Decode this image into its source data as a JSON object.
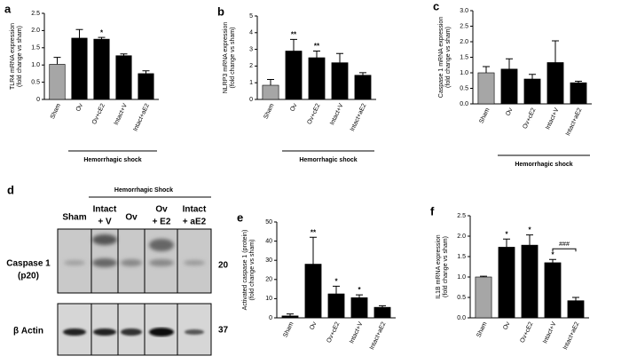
{
  "chart_data": [
    {
      "type": "bar",
      "panel": "a",
      "ylabel": [
        "TLR4 mRNA expression",
        "(fold change vs sham)"
      ],
      "categories": [
        "Sham",
        "Ov",
        "Ov+cE2",
        "Intact+V",
        "Intact+aE2"
      ],
      "values": [
        1.02,
        1.78,
        1.75,
        1.27,
        0.75
      ],
      "errors": [
        0.2,
        0.25,
        0.05,
        0.05,
        0.08
      ],
      "colors": [
        "#a6a6a6",
        "#000000",
        "#000000",
        "#000000",
        "#000000"
      ],
      "ylim": [
        0,
        2.5
      ],
      "yticks": [
        0,
        0.5,
        {
          "value": 1,
          "label": "1.0"
        },
        1.5,
        {
          "value": 2,
          "label": "2.0"
        },
        2.5
      ],
      "group_label": "Hemorrhagic shock",
      "annotations": [
        {
          "category": "Ov+cE2",
          "text": "*"
        }
      ]
    },
    {
      "type": "bar",
      "panel": "b",
      "ylabel": [
        "NLRP3 mRNA expression",
        "(fold change vs sham)"
      ],
      "categories": [
        "Sham",
        "Ov",
        "Ov+cE2",
        "Intact+V",
        "Intact+aE2"
      ],
      "values": [
        0.85,
        2.9,
        2.5,
        2.2,
        1.45
      ],
      "errors": [
        0.35,
        0.7,
        0.4,
        0.55,
        0.15
      ],
      "colors": [
        "#a6a6a6",
        "#000000",
        "#000000",
        "#000000",
        "#000000"
      ],
      "ylim": [
        0,
        5
      ],
      "yticks": [
        0,
        1,
        2,
        3,
        4,
        5
      ],
      "group_label": "Hemorrhagic shock",
      "annotations": [
        {
          "category": "Ov",
          "text": "**"
        },
        {
          "category": "Ov+cE2",
          "text": "**"
        }
      ]
    },
    {
      "type": "bar",
      "panel": "c",
      "ylabel": [
        "Caspase 1 mRNA expression",
        "(fold change vs sham)"
      ],
      "categories": [
        "Sham",
        "Ov",
        "Ov+cE2",
        "Intact+V",
        "Intact+aE2"
      ],
      "values": [
        1.0,
        1.12,
        0.8,
        1.33,
        0.68
      ],
      "errors": [
        0.2,
        0.33,
        0.15,
        0.7,
        0.05
      ],
      "colors": [
        "#a6a6a6",
        "#000000",
        "#000000",
        "#000000",
        "#000000"
      ],
      "ylim": [
        0,
        3
      ],
      "yticks": [
        {
          "value": 0,
          "label": "0.0"
        },
        0.5,
        {
          "value": 1,
          "label": "1.0"
        },
        1.5,
        {
          "value": 2,
          "label": "2.0"
        },
        2.5,
        {
          "value": 3,
          "label": "3.0"
        }
      ],
      "group_label": "Hemorrhagic shock",
      "annotations": []
    },
    {
      "type": "bar",
      "panel": "e",
      "ylabel": [
        "Activated caspase  1 (protein)",
        "(fold change vs sham)"
      ],
      "categories": [
        "Sham",
        "Ov",
        "Ov+cE2",
        "Intact+V",
        "Intact+aE2"
      ],
      "values": [
        1,
        28,
        12.5,
        10.5,
        5.5
      ],
      "errors": [
        1,
        14,
        4,
        1.5,
        0.8
      ],
      "colors": [
        "#000000",
        "#000000",
        "#000000",
        "#000000",
        "#000000"
      ],
      "ylim": [
        0,
        50
      ],
      "yticks": [
        0,
        10,
        20,
        30,
        40,
        50
      ],
      "group_label": "Hemorrhagic shock",
      "annotations": [
        {
          "category": "Ov",
          "text": "**"
        },
        {
          "category": "Ov+cE2",
          "text": "*"
        },
        {
          "category": "Intact+V",
          "text": "*"
        }
      ]
    },
    {
      "type": "bar",
      "panel": "f",
      "ylabel": [
        "IL1B mRNA expression",
        "(fold change vs sham)"
      ],
      "categories": [
        "Sham",
        "Ov",
        "Ov+cE2",
        "Intact+V",
        "Intact+aE2"
      ],
      "values": [
        1.0,
        1.73,
        1.78,
        1.35,
        0.42
      ],
      "errors": [
        0.02,
        0.2,
        0.25,
        0.08,
        0.08
      ],
      "colors": [
        "#a6a6a6",
        "#000000",
        "#000000",
        "#000000",
        "#000000"
      ],
      "ylim": [
        0,
        2.5
      ],
      "yticks": [
        {
          "value": 0,
          "label": "0.0"
        },
        0.5,
        {
          "value": 1,
          "label": "1.0"
        },
        1.5,
        {
          "value": 2,
          "label": "2.0"
        },
        2.5
      ],
      "group_label": "Hemorrhagic shock",
      "annotations": [
        {
          "category": "Ov",
          "text": "*"
        },
        {
          "category": "Ov+cE2",
          "text": "*"
        },
        {
          "category": "Intact+V",
          "text": "*"
        }
      ],
      "bracket": {
        "from": "Intact+V",
        "to": "Intact+aE2",
        "text": "###"
      }
    }
  ],
  "blot": {
    "panel": "d",
    "header": "Hemorrhagic Shock",
    "lanes": [
      [
        "Sham"
      ],
      [
        "Intact",
        "+ V"
      ],
      [
        "Ov"
      ],
      [
        "Ov",
        "+ E2"
      ],
      [
        "Intact",
        "+ aE2"
      ]
    ],
    "rows": [
      {
        "label": [
          "Caspase 1",
          "(p20)"
        ],
        "marker": "20"
      },
      {
        "label": [
          "β Actin"
        ],
        "marker": "37"
      }
    ]
  }
}
